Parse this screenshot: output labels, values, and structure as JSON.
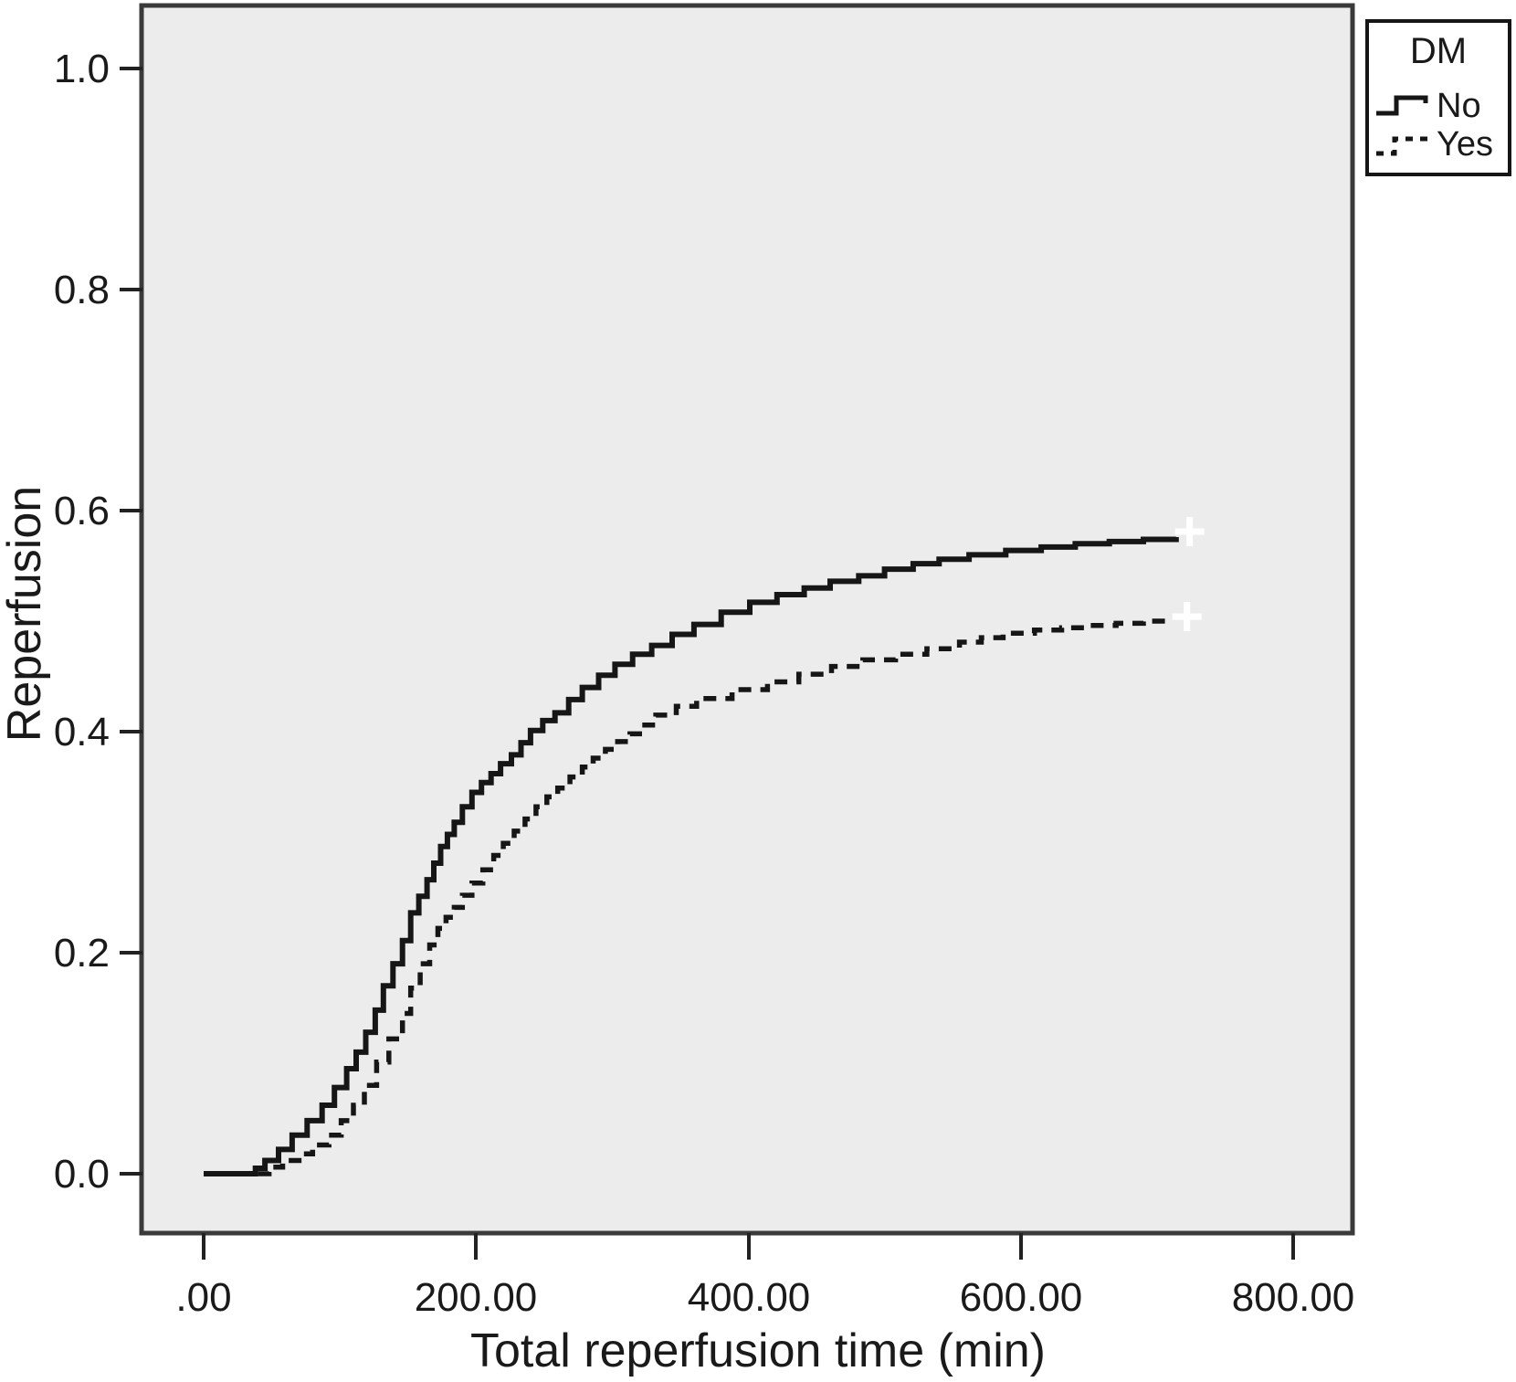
{
  "chart_data": {
    "type": "line",
    "subtype": "kaplan-meier-cumulative-step",
    "title": "",
    "xlabel": "Total reperfusion time (min)",
    "ylabel": "Reperfusion",
    "grid": false,
    "xlim": [
      -46,
      845
    ],
    "ylim": [
      -0.054,
      1.057
    ],
    "x_ticks": [
      {
        "value": 0,
        "label": ".00"
      },
      {
        "value": 200,
        "label": "200.00"
      },
      {
        "value": 400,
        "label": "400.00"
      },
      {
        "value": 600,
        "label": "600.00"
      },
      {
        "value": 800,
        "label": "800.00"
      }
    ],
    "y_ticks": [
      {
        "value": 0.0,
        "label": "0.0"
      },
      {
        "value": 0.2,
        "label": "0.2"
      },
      {
        "value": 0.4,
        "label": "0.4"
      },
      {
        "value": 0.6,
        "label": "0.6"
      },
      {
        "value": 0.8,
        "label": "0.8"
      },
      {
        "value": 1.0,
        "label": "1.0"
      }
    ],
    "legend": {
      "position": "top-right-outside",
      "title": "DM",
      "entries": [
        {
          "label": "No",
          "line_style": "solid"
        },
        {
          "label": "Yes",
          "line_style": "dashed"
        }
      ]
    },
    "colors": {
      "line": "#161616",
      "plot_background": "#ececec",
      "page_background": "#ffffff",
      "frame": "#3a3a3a",
      "censor_mark": "#ffffff"
    },
    "series": [
      {
        "name": "No",
        "style": "solid",
        "color": "#161616",
        "points": [
          [
            0,
            0
          ],
          [
            28,
            0
          ],
          [
            38,
            0.005
          ],
          [
            45,
            0.012
          ],
          [
            55,
            0.022
          ],
          [
            65,
            0.035
          ],
          [
            76,
            0.048
          ],
          [
            87,
            0.062
          ],
          [
            96,
            0.078
          ],
          [
            105,
            0.095
          ],
          [
            112,
            0.11
          ],
          [
            119,
            0.128
          ],
          [
            126,
            0.148
          ],
          [
            132,
            0.17
          ],
          [
            139,
            0.19
          ],
          [
            146,
            0.211
          ],
          [
            152,
            0.236
          ],
          [
            158,
            0.251
          ],
          [
            164,
            0.266
          ],
          [
            169,
            0.281
          ],
          [
            174,
            0.296
          ],
          [
            179,
            0.307
          ],
          [
            184,
            0.318
          ],
          [
            190,
            0.332
          ],
          [
            197,
            0.345
          ],
          [
            204,
            0.354
          ],
          [
            211,
            0.362
          ],
          [
            218,
            0.371
          ],
          [
            226,
            0.379
          ],
          [
            233,
            0.39
          ],
          [
            240,
            0.401
          ],
          [
            249,
            0.41
          ],
          [
            258,
            0.417
          ],
          [
            268,
            0.429
          ],
          [
            278,
            0.44
          ],
          [
            290,
            0.451
          ],
          [
            302,
            0.461
          ],
          [
            315,
            0.47
          ],
          [
            329,
            0.478
          ],
          [
            344,
            0.488
          ],
          [
            360,
            0.497
          ],
          [
            380,
            0.508
          ],
          [
            401,
            0.517
          ],
          [
            421,
            0.524
          ],
          [
            441,
            0.53
          ],
          [
            460,
            0.536
          ],
          [
            481,
            0.541
          ],
          [
            500,
            0.547
          ],
          [
            521,
            0.552
          ],
          [
            540,
            0.556
          ],
          [
            562,
            0.56
          ],
          [
            589,
            0.564
          ],
          [
            615,
            0.567
          ],
          [
            640,
            0.57
          ],
          [
            665,
            0.572
          ],
          [
            690,
            0.574
          ],
          [
            714,
            0.576
          ]
        ],
        "censor_marks": [
          [
            724,
            0.581
          ]
        ]
      },
      {
        "name": "Yes",
        "style": "dashed",
        "color": "#161616",
        "points": [
          [
            40,
            0
          ],
          [
            48,
            0.006
          ],
          [
            58,
            0.012
          ],
          [
            70,
            0.018
          ],
          [
            80,
            0.026
          ],
          [
            92,
            0.035
          ],
          [
            101,
            0.048
          ],
          [
            110,
            0.062
          ],
          [
            118,
            0.08
          ],
          [
            127,
            0.101
          ],
          [
            136,
            0.122
          ],
          [
            146,
            0.145
          ],
          [
            152,
            0.168
          ],
          [
            159,
            0.19
          ],
          [
            166,
            0.207
          ],
          [
            172,
            0.222
          ],
          [
            178,
            0.232
          ],
          [
            184,
            0.241
          ],
          [
            190,
            0.252
          ],
          [
            197,
            0.263
          ],
          [
            205,
            0.275
          ],
          [
            213,
            0.288
          ],
          [
            220,
            0.299
          ],
          [
            228,
            0.31
          ],
          [
            236,
            0.321
          ],
          [
            244,
            0.332
          ],
          [
            252,
            0.341
          ],
          [
            260,
            0.349
          ],
          [
            269,
            0.359
          ],
          [
            278,
            0.368
          ],
          [
            286,
            0.376
          ],
          [
            295,
            0.384
          ],
          [
            304,
            0.391
          ],
          [
            313,
            0.398
          ],
          [
            322,
            0.406
          ],
          [
            332,
            0.415
          ],
          [
            347,
            0.423
          ],
          [
            362,
            0.43
          ],
          [
            388,
            0.438
          ],
          [
            414,
            0.445
          ],
          [
            437,
            0.452
          ],
          [
            461,
            0.459
          ],
          [
            484,
            0.465
          ],
          [
            508,
            0.47
          ],
          [
            531,
            0.475
          ],
          [
            555,
            0.481
          ],
          [
            571,
            0.485
          ],
          [
            587,
            0.489
          ],
          [
            610,
            0.492
          ],
          [
            630,
            0.494
          ],
          [
            650,
            0.496
          ],
          [
            670,
            0.498
          ],
          [
            690,
            0.5
          ],
          [
            706,
            0.502
          ]
        ],
        "censor_marks": [
          [
            722,
            0.504
          ]
        ]
      }
    ]
  }
}
